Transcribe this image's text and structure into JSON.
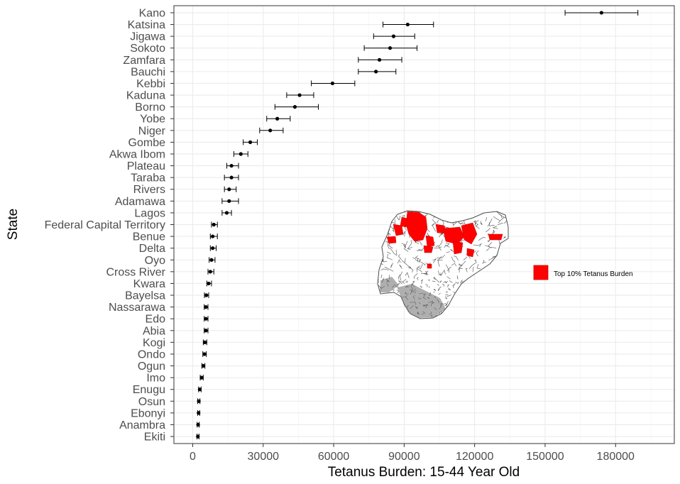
{
  "chart_data": {
    "type": "scatter",
    "subtype": "dot-with-error-bars",
    "orientation": "horizontal",
    "xlabel": "Tetanus Burden: 15-44 Year Old",
    "ylabel": "State",
    "xlim": [
      -8000,
      205000
    ],
    "xticks": [
      0,
      30000,
      60000,
      90000,
      120000,
      150000,
      180000
    ],
    "xtick_labels": [
      "0",
      "30000",
      "60000",
      "90000",
      "120000",
      "150000",
      "180000"
    ],
    "grid": true,
    "categories": [
      "Kano",
      "Katsina",
      "Jigawa",
      "Sokoto",
      "Zamfara",
      "Bauchi",
      "Kebbi",
      "Kaduna",
      "Borno",
      "Yobe",
      "Niger",
      "Gombe",
      "Akwa Ibom",
      "Plateau",
      "Taraba",
      "Rivers",
      "Adamawa",
      "Lagos",
      "Federal Capital Territory",
      "Benue",
      "Delta",
      "Oyo",
      "Cross River",
      "Kwara",
      "Bayelsa",
      "Nassarawa",
      "Edo",
      "Abia",
      "Kogi",
      "Ondo",
      "Ogun",
      "Imo",
      "Enugu",
      "Osun",
      "Ebonyi",
      "Anambra",
      "Ekiti"
    ],
    "values": [
      174000,
      91500,
      85500,
      84000,
      79500,
      78000,
      59500,
      45500,
      43500,
      36000,
      33000,
      24500,
      20500,
      16500,
      16500,
      15500,
      15500,
      14500,
      9000,
      8500,
      8500,
      8000,
      7500,
      6800,
      5800,
      5600,
      5600,
      5600,
      5200,
      5000,
      4500,
      3800,
      3000,
      2600,
      2500,
      2300,
      2200
    ],
    "lower": [
      158500,
      81000,
      77000,
      73000,
      70500,
      70500,
      50500,
      40000,
      35000,
      31500,
      28500,
      21500,
      17500,
      14500,
      13500,
      13500,
      12500,
      12500,
      8000,
      7500,
      7500,
      7000,
      6500,
      6000,
      5000,
      4900,
      4900,
      4900,
      4500,
      4300,
      3900,
      3200,
      2500,
      2100,
      2100,
      1900,
      1800
    ],
    "upper": [
      189500,
      102500,
      94500,
      95500,
      89000,
      86500,
      69000,
      51500,
      53500,
      41500,
      38500,
      27500,
      23500,
      19500,
      19500,
      18500,
      19500,
      16500,
      10500,
      10500,
      10000,
      9500,
      9000,
      8000,
      6800,
      6500,
      6500,
      6500,
      6000,
      5800,
      5200,
      4500,
      3600,
      3100,
      3000,
      2800,
      2700
    ],
    "inset_map": {
      "region": "Nigeria",
      "highlight_color": "#ff0000",
      "base_fill": "#ffffff",
      "border_color": "#4d4d4d",
      "legend": {
        "label": "Top 10% Tetanus Burden",
        "swatch": "#ff0000"
      }
    }
  }
}
